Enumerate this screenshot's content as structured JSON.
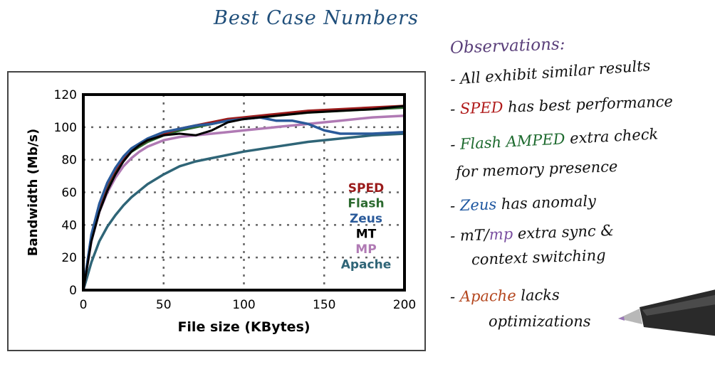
{
  "slide": {
    "title": "Best Case Numbers"
  },
  "notes": {
    "heading": "Observations:",
    "line1": "- All exhibit similar results",
    "line2_dash": "- ",
    "line2_hl": "SPED",
    "line2_rest": " has best performance",
    "line3_dash": "- ",
    "line3_hl": "Flash AMPED",
    "line3_rest": " extra check",
    "line4": "for memory presence",
    "line5_dash": "- ",
    "line5_hl": "Zeus",
    "line5_rest": " has anomaly",
    "line6_dash": "- ",
    "line6_a": "mT",
    "line6_slash": "/",
    "line6_hl": "mp",
    "line6_rest": " extra sync &",
    "line7": "context switching",
    "line8_dash": "- ",
    "line8_hl": "Apache",
    "line8_rest": " lacks",
    "line9": "optimizations"
  },
  "colors": {
    "SPED": "#9b1b1b",
    "Flash": "#2c6a2f",
    "Zeus": "#2a5a9a",
    "MT": "#000000",
    "MP": "#b07ab4",
    "Apache": "#2f6577"
  },
  "chart_data": {
    "type": "line",
    "title": "",
    "xlabel": "File size (KBytes)",
    "ylabel": "Bandwidth (Mb/s)",
    "xlim": [
      0,
      200
    ],
    "ylim": [
      0,
      120
    ],
    "xticks": [
      0,
      50,
      100,
      150,
      200
    ],
    "yticks": [
      0,
      20,
      40,
      60,
      80,
      100,
      120
    ],
    "grid": true,
    "legend_position": "center-right",
    "series": [
      {
        "name": "SPED",
        "x": [
          0,
          5,
          10,
          15,
          20,
          25,
          30,
          35,
          40,
          50,
          60,
          70,
          80,
          90,
          100,
          120,
          140,
          160,
          180,
          200
        ],
        "y": [
          0,
          33,
          52,
          65,
          74,
          81,
          86,
          89,
          92,
          96,
          99,
          101,
          103,
          105,
          106,
          108,
          110,
          111,
          112,
          113
        ]
      },
      {
        "name": "Flash",
        "x": [
          0,
          5,
          10,
          15,
          20,
          25,
          30,
          35,
          40,
          50,
          60,
          70,
          80,
          90,
          100,
          120,
          140,
          160,
          180,
          200
        ],
        "y": [
          0,
          32,
          51,
          64,
          73,
          80,
          85,
          88,
          91,
          95,
          98,
          100,
          102,
          104,
          105,
          107,
          109,
          110,
          111,
          112
        ]
      },
      {
        "name": "Zeus",
        "x": [
          0,
          5,
          10,
          15,
          20,
          25,
          30,
          35,
          40,
          50,
          60,
          70,
          80,
          90,
          100,
          110,
          120,
          130,
          140,
          150,
          160,
          180,
          200
        ],
        "y": [
          0,
          34,
          53,
          66,
          75,
          82,
          87,
          90,
          93,
          97,
          99,
          101,
          102,
          104,
          105,
          106,
          104,
          104,
          102,
          98,
          96,
          96,
          97
        ]
      },
      {
        "name": "MT",
        "x": [
          0,
          5,
          10,
          15,
          20,
          25,
          30,
          35,
          40,
          50,
          60,
          70,
          80,
          90,
          100,
          120,
          140,
          160,
          180,
          200
        ],
        "y": [
          0,
          30,
          48,
          61,
          71,
          79,
          85,
          89,
          92,
          95,
          96,
          95,
          98,
          103,
          105,
          107,
          109,
          110,
          111,
          113
        ]
      },
      {
        "name": "MP",
        "x": [
          0,
          5,
          10,
          15,
          20,
          25,
          30,
          35,
          40,
          50,
          60,
          70,
          80,
          90,
          100,
          120,
          140,
          160,
          180,
          200
        ],
        "y": [
          0,
          30,
          48,
          60,
          69,
          76,
          81,
          85,
          88,
          92,
          94,
          95,
          96,
          97,
          98,
          100,
          102,
          104,
          106,
          107
        ]
      },
      {
        "name": "Apache",
        "x": [
          0,
          5,
          10,
          15,
          20,
          25,
          30,
          35,
          40,
          50,
          60,
          70,
          80,
          90,
          100,
          120,
          140,
          160,
          180,
          200
        ],
        "y": [
          0,
          17,
          30,
          39,
          46,
          52,
          57,
          61,
          65,
          71,
          76,
          79,
          81,
          83,
          85,
          88,
          91,
          93,
          95,
          96
        ]
      }
    ]
  }
}
